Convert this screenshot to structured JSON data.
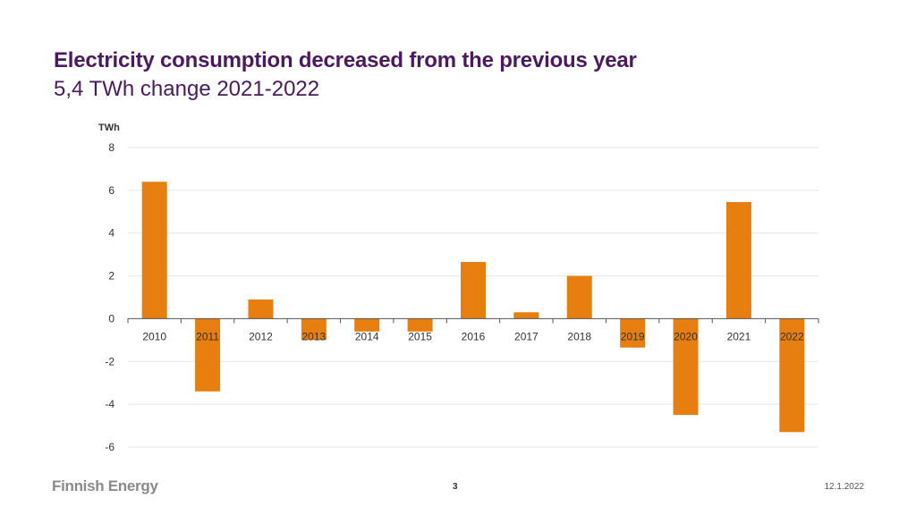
{
  "slide": {
    "title": "Electricity consumption decreased from the previous year",
    "subtitle": "5,4 TWh change 2021-2022",
    "logo_text": "Finnish Energy",
    "page_number": "3",
    "date": "12.1.2022"
  },
  "colors": {
    "title": "#4b1a5e",
    "bar": "#e67e10",
    "grid": "#e6e6e6",
    "axis": "#555555"
  },
  "chart_data": {
    "type": "bar",
    "title": "",
    "xlabel": "",
    "ylabel": "TWh",
    "categories": [
      "2010",
      "2011",
      "2012",
      "2013",
      "2014",
      "2015",
      "2016",
      "2017",
      "2018",
      "2019",
      "2020",
      "2021",
      "2022"
    ],
    "values": [
      6.4,
      -3.4,
      0.9,
      -1.0,
      -0.6,
      -0.6,
      2.65,
      0.3,
      2.0,
      -1.35,
      -4.5,
      5.45,
      -5.3
    ],
    "ylim": [
      -6,
      8
    ],
    "yticks": [
      8,
      6,
      4,
      2,
      0,
      -2,
      -4,
      -6
    ],
    "grid": true,
    "legend": "none"
  }
}
